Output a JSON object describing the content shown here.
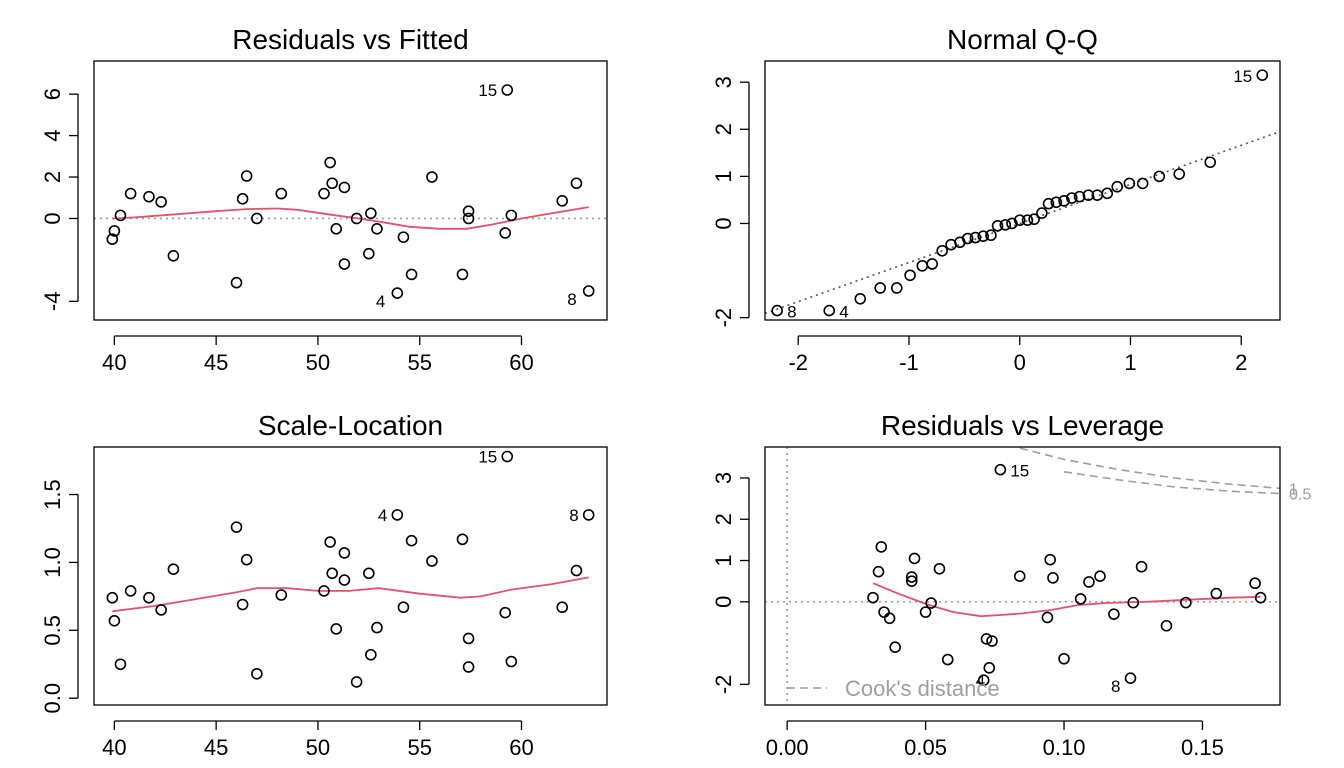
{
  "chart_data": [
    {
      "type": "scatter",
      "title": "Residuals vs Fitted",
      "xlabel": "",
      "ylabel": "",
      "xlim": [
        39,
        64.2
      ],
      "ylim": [
        -4.9,
        7.6
      ],
      "xticks": [
        40,
        45,
        50,
        55,
        60
      ],
      "xtick_labels": [
        "40",
        "45",
        "50",
        "55",
        "60"
      ],
      "yticks": [
        -4,
        0,
        2,
        4,
        6
      ],
      "ytick_labels": [
        "-4",
        "0",
        "2",
        "4",
        "6"
      ],
      "points": [
        [
          39.9,
          -1.0
        ],
        [
          40.0,
          -0.6
        ],
        [
          40.3,
          0.15
        ],
        [
          40.8,
          1.2
        ],
        [
          41.7,
          1.05
        ],
        [
          42.3,
          0.8
        ],
        [
          42.9,
          -1.8
        ],
        [
          46.0,
          -3.1
        ],
        [
          46.3,
          0.95
        ],
        [
          46.5,
          2.05
        ],
        [
          47.0,
          0.0
        ],
        [
          48.2,
          1.2
        ],
        [
          50.3,
          1.2
        ],
        [
          50.6,
          2.7
        ],
        [
          50.7,
          1.7
        ],
        [
          50.9,
          -0.5
        ],
        [
          51.3,
          1.5
        ],
        [
          51.3,
          -2.2
        ],
        [
          51.9,
          0.0
        ],
        [
          52.5,
          -1.7
        ],
        [
          52.6,
          0.25
        ],
        [
          52.9,
          -0.5
        ],
        [
          53.9,
          -3.6
        ],
        [
          54.2,
          -0.9
        ],
        [
          54.6,
          -2.7
        ],
        [
          55.6,
          2.0
        ],
        [
          57.1,
          -2.7
        ],
        [
          57.4,
          0.0
        ],
        [
          57.4,
          0.35
        ],
        [
          59.2,
          -0.7
        ],
        [
          59.3,
          6.2
        ],
        [
          59.5,
          0.15
        ],
        [
          62.0,
          0.85
        ],
        [
          62.7,
          1.7
        ],
        [
          63.3,
          -3.5
        ]
      ],
      "point_labels": [
        {
          "text": "15",
          "x": 59.3,
          "y": 6.2
        },
        {
          "text": "4",
          "x": 53.9,
          "y": -3.6
        },
        {
          "text": "8",
          "x": 63.3,
          "y": -3.5
        }
      ],
      "smooth_line": [
        [
          39.9,
          0.0
        ],
        [
          41,
          0.05
        ],
        [
          43,
          0.2
        ],
        [
          45,
          0.35
        ],
        [
          46.5,
          0.45
        ],
        [
          48,
          0.48
        ],
        [
          49,
          0.42
        ],
        [
          50.5,
          0.2
        ],
        [
          52,
          0.0
        ],
        [
          53,
          -0.15
        ],
        [
          54.5,
          -0.4
        ],
        [
          56,
          -0.5
        ],
        [
          57.3,
          -0.5
        ],
        [
          58.5,
          -0.3
        ],
        [
          60,
          0.0
        ],
        [
          61.5,
          0.25
        ],
        [
          63.3,
          0.55
        ]
      ],
      "reference_line": {
        "y": 0,
        "style": "dotted"
      }
    },
    {
      "type": "scatter",
      "title": "Normal Q-Q",
      "xlabel": "",
      "ylabel": "",
      "xlim": [
        -2.3,
        2.35
      ],
      "ylim": [
        -2.05,
        3.45
      ],
      "xticks": [
        -2,
        -1,
        0,
        1,
        2
      ],
      "xtick_labels": [
        "-2",
        "-1",
        "0",
        "1",
        "2"
      ],
      "yticks": [
        -2,
        0,
        1,
        2,
        3
      ],
      "ytick_labels": [
        "-2",
        "0",
        "1",
        "2",
        "3"
      ],
      "points": [
        [
          -2.19,
          -1.85
        ],
        [
          -1.72,
          -1.85
        ],
        [
          -1.44,
          -1.6
        ],
        [
          -1.26,
          -1.37
        ],
        [
          -1.11,
          -1.37
        ],
        [
          -0.99,
          -1.1
        ],
        [
          -0.88,
          -0.9
        ],
        [
          -0.79,
          -0.86
        ],
        [
          -0.7,
          -0.58
        ],
        [
          -0.62,
          -0.45
        ],
        [
          -0.54,
          -0.4
        ],
        [
          -0.47,
          -0.32
        ],
        [
          -0.4,
          -0.3
        ],
        [
          -0.33,
          -0.27
        ],
        [
          -0.26,
          -0.25
        ],
        [
          -0.2,
          -0.05
        ],
        [
          -0.13,
          -0.03
        ],
        [
          -0.07,
          0.0
        ],
        [
          0.0,
          0.07
        ],
        [
          0.07,
          0.07
        ],
        [
          0.13,
          0.09
        ],
        [
          0.2,
          0.22
        ],
        [
          0.26,
          0.42
        ],
        [
          0.33,
          0.45
        ],
        [
          0.4,
          0.48
        ],
        [
          0.47,
          0.54
        ],
        [
          0.54,
          0.57
        ],
        [
          0.62,
          0.6
        ],
        [
          0.7,
          0.6
        ],
        [
          0.79,
          0.64
        ],
        [
          0.88,
          0.78
        ],
        [
          0.99,
          0.85
        ],
        [
          1.11,
          0.85
        ],
        [
          1.26,
          1.0
        ],
        [
          1.44,
          1.05
        ],
        [
          1.72,
          1.3
        ],
        [
          2.19,
          3.15
        ]
      ],
      "point_labels": [
        {
          "text": "15",
          "x": 2.19,
          "y": 3.15
        },
        {
          "text": "8",
          "x": -2.19,
          "y": -1.85
        },
        {
          "text": "4",
          "x": -1.72,
          "y": -1.85
        }
      ],
      "reference_line": {
        "intercept": 0.0,
        "slope": 0.83,
        "style": "dotted"
      }
    },
    {
      "type": "scatter",
      "title": "Scale-Location",
      "xlabel": "",
      "ylabel": "",
      "xlim": [
        39,
        64.2
      ],
      "ylim": [
        -0.05,
        1.85
      ],
      "xticks": [
        40,
        45,
        50,
        55,
        60
      ],
      "xtick_labels": [
        "40",
        "45",
        "50",
        "55",
        "60"
      ],
      "yticks": [
        0.0,
        0.5,
        1.0,
        1.5
      ],
      "ytick_labels": [
        "0.0",
        "0.5",
        "1.0",
        "1.5"
      ],
      "points": [
        [
          39.9,
          0.74
        ],
        [
          40.0,
          0.57
        ],
        [
          40.3,
          0.25
        ],
        [
          40.8,
          0.79
        ],
        [
          41.7,
          0.74
        ],
        [
          42.3,
          0.65
        ],
        [
          42.9,
          0.95
        ],
        [
          46.0,
          1.26
        ],
        [
          46.3,
          0.69
        ],
        [
          46.5,
          1.02
        ],
        [
          47.0,
          0.18
        ],
        [
          48.2,
          0.76
        ],
        [
          50.3,
          0.79
        ],
        [
          50.6,
          1.15
        ],
        [
          50.7,
          0.92
        ],
        [
          50.9,
          0.51
        ],
        [
          51.3,
          0.87
        ],
        [
          51.3,
          1.07
        ],
        [
          51.9,
          0.12
        ],
        [
          52.5,
          0.92
        ],
        [
          52.6,
          0.32
        ],
        [
          52.9,
          0.52
        ],
        [
          53.9,
          1.35
        ],
        [
          54.2,
          0.67
        ],
        [
          54.6,
          1.16
        ],
        [
          55.6,
          1.01
        ],
        [
          57.1,
          1.17
        ],
        [
          57.4,
          0.23
        ],
        [
          57.4,
          0.44
        ],
        [
          59.2,
          0.63
        ],
        [
          59.3,
          1.78
        ],
        [
          59.5,
          0.27
        ],
        [
          62.0,
          0.67
        ],
        [
          62.7,
          0.94
        ],
        [
          63.3,
          1.35
        ]
      ],
      "point_labels": [
        {
          "text": "15",
          "x": 59.3,
          "y": 1.78
        },
        {
          "text": "4",
          "x": 53.9,
          "y": 1.35
        },
        {
          "text": "8",
          "x": 63.3,
          "y": 1.35
        }
      ],
      "smooth_line": [
        [
          39.9,
          0.64
        ],
        [
          42,
          0.68
        ],
        [
          44,
          0.73
        ],
        [
          46,
          0.78
        ],
        [
          47,
          0.81
        ],
        [
          48.5,
          0.81
        ],
        [
          50,
          0.79
        ],
        [
          51.5,
          0.79
        ],
        [
          53,
          0.81
        ],
        [
          55,
          0.77
        ],
        [
          57,
          0.74
        ],
        [
          58,
          0.75
        ],
        [
          59.5,
          0.8
        ],
        [
          61.5,
          0.84
        ],
        [
          63.3,
          0.89
        ]
      ]
    },
    {
      "type": "scatter",
      "title": "Residuals vs Leverage",
      "xlabel": "",
      "ylabel": "",
      "xlim": [
        -0.008,
        0.178
      ],
      "ylim": [
        -2.5,
        3.75
      ],
      "xticks": [
        0.0,
        0.05,
        0.1,
        0.15
      ],
      "xtick_labels": [
        "0.00",
        "0.05",
        "0.10",
        "0.15"
      ],
      "yticks": [
        -2,
        0,
        1,
        2,
        3
      ],
      "ytick_labels": [
        "-2",
        "0",
        "1",
        "2",
        "3"
      ],
      "points": [
        [
          0.031,
          0.1
        ],
        [
          0.033,
          0.73
        ],
        [
          0.034,
          1.33
        ],
        [
          0.035,
          -0.25
        ],
        [
          0.037,
          -0.4
        ],
        [
          0.039,
          -1.1
        ],
        [
          0.045,
          0.5
        ],
        [
          0.045,
          0.6
        ],
        [
          0.046,
          1.05
        ],
        [
          0.05,
          -0.25
        ],
        [
          0.052,
          -0.03
        ],
        [
          0.055,
          0.8
        ],
        [
          0.058,
          -1.4
        ],
        [
          0.071,
          -1.9
        ],
        [
          0.072,
          -0.9
        ],
        [
          0.073,
          -1.6
        ],
        [
          0.074,
          -0.95
        ],
        [
          0.077,
          3.2
        ],
        [
          0.084,
          0.62
        ],
        [
          0.094,
          -0.38
        ],
        [
          0.095,
          1.02
        ],
        [
          0.096,
          0.58
        ],
        [
          0.1,
          -1.38
        ],
        [
          0.106,
          0.07
        ],
        [
          0.109,
          0.48
        ],
        [
          0.113,
          0.62
        ],
        [
          0.118,
          -0.3
        ],
        [
          0.124,
          -1.85
        ],
        [
          0.125,
          -0.02
        ],
        [
          0.128,
          0.85
        ],
        [
          0.137,
          -0.58
        ],
        [
          0.144,
          -0.02
        ],
        [
          0.155,
          0.2
        ],
        [
          0.169,
          0.45
        ],
        [
          0.171,
          0.1
        ]
      ],
      "point_labels": [
        {
          "text": "15",
          "x": 0.077,
          "y": 3.2
        },
        {
          "text": "4",
          "x": 0.073,
          "y": -1.6
        },
        {
          "text": "8",
          "x": 0.124,
          "y": -1.85
        }
      ],
      "smooth_line": [
        [
          0.031,
          0.45
        ],
        [
          0.04,
          0.2
        ],
        [
          0.05,
          -0.05
        ],
        [
          0.06,
          -0.25
        ],
        [
          0.07,
          -0.35
        ],
        [
          0.075,
          -0.33
        ],
        [
          0.085,
          -0.28
        ],
        [
          0.095,
          -0.2
        ],
        [
          0.105,
          -0.08
        ],
        [
          0.115,
          -0.03
        ],
        [
          0.13,
          0.0
        ],
        [
          0.145,
          0.05
        ],
        [
          0.16,
          0.1
        ],
        [
          0.171,
          0.12
        ]
      ],
      "reference_lines": {
        "x": 0,
        "y": 0,
        "style": "dotted"
      },
      "legend": {
        "text": "Cook's distance",
        "position": "bottom-left",
        "style": "dashed"
      },
      "cook_contours": [
        {
          "label": "1",
          "points": [
            [
              0.0795,
              3.8
            ],
            [
              0.1,
              3.45
            ],
            [
              0.12,
              3.2
            ],
            [
              0.14,
              3.0
            ],
            [
              0.16,
              2.85
            ],
            [
              0.178,
              2.75
            ]
          ]
        },
        {
          "label": "0.5",
          "points": [
            [
              0.1,
              3.15
            ],
            [
              0.12,
              2.95
            ],
            [
              0.14,
              2.78
            ],
            [
              0.16,
              2.68
            ],
            [
              0.178,
              2.62
            ]
          ]
        }
      ],
      "colors": {
        "smooth": "#df536b",
        "reference": "#9e9e9e",
        "points": "#000000"
      }
    }
  ]
}
